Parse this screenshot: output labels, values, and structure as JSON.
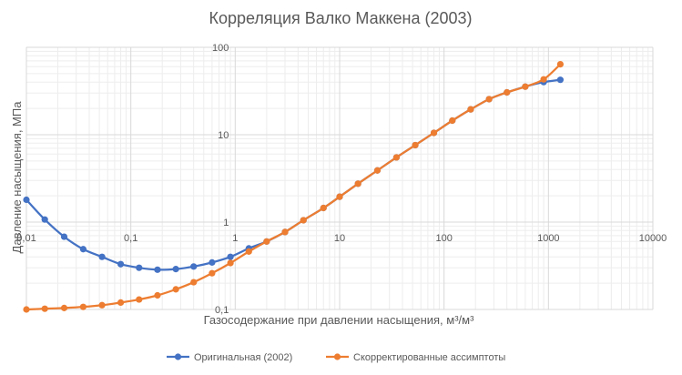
{
  "chart_data": {
    "type": "line",
    "title": "Корреляция Валко Маккена (2003)",
    "xlabel": "Газосодержание при давлении насыщения, м³/м³",
    "ylabel": "Давление насыщения, МПа",
    "x_scale": "log",
    "y_scale": "log",
    "xlim": [
      0.01,
      10000
    ],
    "ylim": [
      0.1,
      100
    ],
    "x_ticks": [
      "0.01",
      "0.1",
      "1",
      "10",
      "100",
      "1000",
      "10000"
    ],
    "y_ticks": [
      "0.1",
      "1",
      "10",
      "100"
    ],
    "grid": true,
    "legend_position": "bottom",
    "series": [
      {
        "name": "Оригинальная (2002)",
        "color": "#4472C4",
        "x": [
          0.01,
          0.015,
          0.023,
          0.035,
          0.053,
          0.08,
          0.12,
          0.18,
          0.27,
          0.4,
          0.6,
          0.9,
          1.35,
          2.0,
          3.0,
          4.5,
          7.0,
          10,
          15,
          23,
          35,
          53,
          80,
          120,
          180,
          270,
          400,
          600,
          900,
          1300
        ],
        "y": [
          1.8,
          1.07,
          0.68,
          0.49,
          0.4,
          0.33,
          0.3,
          0.285,
          0.29,
          0.31,
          0.345,
          0.4,
          0.5,
          0.6,
          0.77,
          1.05,
          1.45,
          1.95,
          2.75,
          3.9,
          5.5,
          7.6,
          10.5,
          14.5,
          19.5,
          25.5,
          30.5,
          35.5,
          40.0,
          42.5
        ]
      },
      {
        "name": "Скорректированные ассимптоты",
        "color": "#ED7D31",
        "x": [
          0.01,
          0.015,
          0.023,
          0.035,
          0.053,
          0.08,
          0.12,
          0.18,
          0.27,
          0.4,
          0.6,
          0.9,
          1.35,
          2.0,
          3.0,
          4.5,
          7.0,
          10,
          15,
          23,
          35,
          53,
          80,
          120,
          180,
          270,
          400,
          600,
          900,
          1300
        ],
        "y": [
          0.1,
          0.102,
          0.104,
          0.107,
          0.112,
          0.12,
          0.13,
          0.145,
          0.17,
          0.205,
          0.26,
          0.34,
          0.46,
          0.6,
          0.77,
          1.05,
          1.45,
          1.95,
          2.75,
          3.9,
          5.5,
          7.6,
          10.5,
          14.5,
          19.5,
          25.5,
          30.5,
          35.5,
          43.0,
          64.0
        ]
      }
    ]
  }
}
